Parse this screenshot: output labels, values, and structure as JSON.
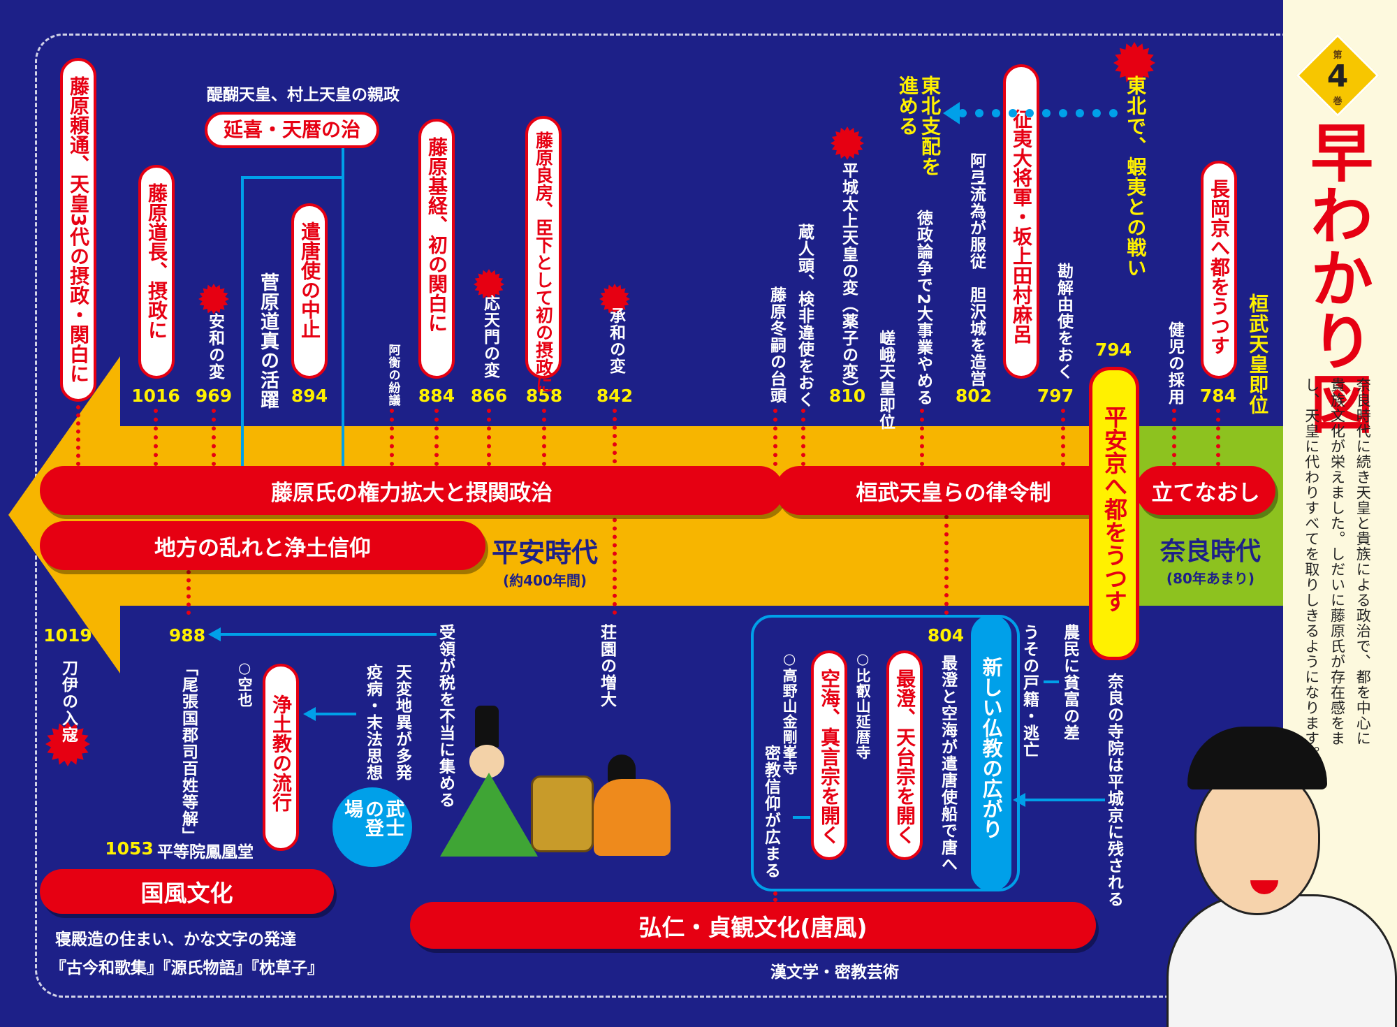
{
  "colors": {
    "background": "#1d2088",
    "band_heian": "#f7b500",
    "band_nara": "#8dc21f",
    "red": "#e60012",
    "cyan": "#00a0e9",
    "yellow_text": "#fff100",
    "panel": "#fdf9de"
  },
  "side_panel": {
    "volume_prefix": "第",
    "volume_number": "4",
    "volume_suffix": "巻",
    "title": "早わかり図",
    "description": [
      "奈良時代に続き天皇と貴族による政治で、都を中心に",
      "貴族文化が栄えました。しだいに藤原氏が存在感をま",
      "し、天皇に代わりすべてを取りしきるようになります。"
    ]
  },
  "bands": {
    "fujiwara": "藤原氏の権力拡大と摂関政治",
    "kanmu": "桓武天皇らの律令制",
    "tatenaoshi": "立てなおし",
    "chiho": "地方の乱れと浄土信仰",
    "heiankyo": "平安京へ都をうつす"
  },
  "eras": {
    "heian": "平安時代",
    "heian_sub": "(約400年間)",
    "nara": "奈良時代",
    "nara_sub": "(80年あまり)"
  },
  "years": [
    "1016",
    "969",
    "894",
    "884",
    "866",
    "858",
    "842",
    "810",
    "802",
    "797",
    "794",
    "784",
    "1019",
    "988",
    "1053",
    "804"
  ],
  "top": {
    "yorimichi": "藤原頼通、天皇3代の摂政・関白に",
    "michinaga": "藤原道長、摂政に",
    "anna": "安和の変",
    "michizane": "菅原道真の活躍",
    "kentoshi": "遣唐使の中止",
    "engi_heading": "醍醐天皇、村上天皇の親政",
    "engi": "延喜・天暦の治",
    "ako": "阿衡の紛議",
    "mototsune": "藤原基経、初の関白に",
    "otenmon": "応天門の変",
    "yoshifusa": "藤原良房、臣下として初の摂政に",
    "jowa": "承和の変",
    "fuyutsugu": "藤原冬嗣の台頭",
    "kurodo": "蔵人頭、検非違使をおく",
    "heizei": "平城太上天皇の変（薬子の変）",
    "saga": "嵯峨天皇即位",
    "tokusei": "徳政論争で2大事業やめる",
    "tohoku_shihai": "東北支配を進める",
    "aterui": "阿弖流為が服従　胆沢城を造営",
    "tamuramaro": "征夷大将軍・坂上田村麻呂",
    "kageyushi": "勘解由使をおく",
    "emishi": "東北で、蝦夷との戦い",
    "kondei": "健児の採用",
    "nagaoka": "長岡京へ都をうつす",
    "kanmu_sokui": "桓武天皇即位"
  },
  "bottom": {
    "toi": "刀伊の入寇",
    "owari": "「尾張国郡司百姓等解」",
    "kuya": "○空也",
    "jodo": "浄土教の流行",
    "tenpen": "天変地異が多発",
    "ekibyo": "疫病・末法思想",
    "zuryo": "受領が税を不当に集める",
    "bushi": "武士の登場",
    "shoen": "荘園の増大",
    "byodoin": "平等院鳳凰堂",
    "kokufu": "国風文化",
    "kokufu_1": "寝殿造の住まい、かな文字の発達",
    "kokufu_2": "『古今和歌集』『源氏物語』『枕草子』",
    "konin": "弘仁・貞観文化(唐風)",
    "konin_sub": "漢文学・密教芸術",
    "bukkyo": "新しい仏教の広がり",
    "saicho_kukai": "最澄と空海が遣唐使船で唐へ",
    "tendai": "最澄、天台宗を開く",
    "hiei": "○比叡山延暦寺",
    "shingon": "空海、真言宗を開く",
    "koya": "○高野山金剛峯寺",
    "mikkyo": "密教信仰が広まる",
    "koseki": "うその戸籍・逃亡",
    "nomin": "農民に貧富の差",
    "nara_jiin": "奈良の寺院は平城京に残される"
  }
}
